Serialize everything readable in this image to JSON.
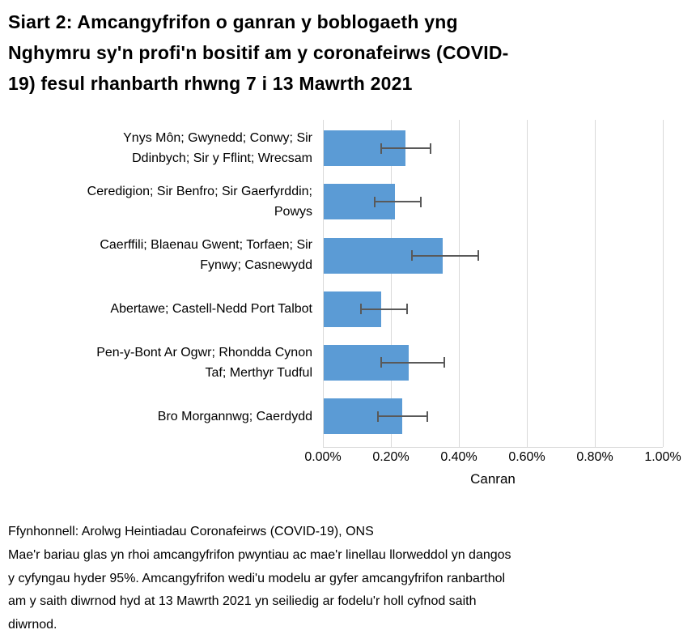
{
  "title_lines": [
    "Siart 2: Amcangyfrifon o ganran y boblogaeth yng",
    "Nghymru sy'n profi'n bositif am y coronafeirws (COVID-",
    "19) fesul rhanbarth rhwng 7 i 13 Mawrth 2021"
  ],
  "chart_data": {
    "type": "bar",
    "orientation": "horizontal",
    "title": "Siart 2: Amcangyfrifon o ganran y boblogaeth yng Nghymru sy'n profi'n bositif am y coronafeirws (COVID-19) fesul rhanbarth rhwng 7 i 13 Mawrth 2021",
    "categories": [
      "Ynys Môn; Gwynedd; Conwy; Sir Ddinbych; Sir y Fflint; Wrecsam",
      "Ceredigion; Sir Benfro; Sir Gaerfyrddin; Powys",
      "Caerffili; Blaenau Gwent; Torfaen; Sir Fynwy; Casnewydd",
      "Abertawe; Castell-Nedd Port Talbot",
      "Pen-y-Bont Ar Ogwr; Rhondda Cynon Taf; Merthyr Tudful",
      "Bro Morgannwg; Caerdydd"
    ],
    "category_label_lines": [
      [
        "Ynys Môn; Gwynedd; Conwy; Sir",
        "Ddinbych; Sir y Fflint; Wrecsam"
      ],
      [
        "Ceredigion; Sir Benfro; Sir Gaerfyrddin;",
        "Powys"
      ],
      [
        "Caerffili; Blaenau Gwent; Torfaen; Sir",
        "Fynwy; Casnewydd"
      ],
      [
        "Abertawe; Castell-Nedd Port Talbot"
      ],
      [
        "Pen-y-Bont Ar Ogwr; Rhondda Cynon",
        "Taf; Merthyr Tudful"
      ],
      [
        "Bro Morgannwg; Caerdydd"
      ]
    ],
    "values": [
      0.24,
      0.21,
      0.35,
      0.17,
      0.25,
      0.23
    ],
    "ci_low": [
      0.17,
      0.15,
      0.26,
      0.11,
      0.17,
      0.16
    ],
    "ci_high": [
      0.32,
      0.29,
      0.46,
      0.25,
      0.36,
      0.31
    ],
    "x_ticks": [
      "0.00%",
      "0.20%",
      "0.40%",
      "0.60%",
      "0.80%",
      "1.00%"
    ],
    "xlim": [
      0,
      1.0
    ],
    "xlabel": "Canran",
    "grid": "vertical",
    "legend": "none",
    "bar_color": "#5B9BD5",
    "error_color": "#595959",
    "gridline_color": "#D9D9D9"
  },
  "footer": {
    "source": "Ffynhonnell: Arolwg Heintiadau Coronafeirws (COVID-19), ONS",
    "note": "Mae'r bariau glas yn rhoi amcangyfrifon pwyntiau ac mae'r linellau llorweddol yn dangos y cyfyngau hyder 95%. Amcangyfrifon wedi'u modelu ar gyfer amcangyfrifon ranbarthol am y saith diwrnod hyd at 13 Mawrth 2021 yn seiliedig ar fodelu'r holl cyfnod saith diwrnod.",
    "note_lines": [
      "Mae'r bariau glas yn rhoi amcangyfrifon pwyntiau ac mae'r linellau llorweddol yn dangos",
      "y cyfyngau hyder 95%. Amcangyfrifon wedi'u modelu ar gyfer amcangyfrifon ranbarthol",
      "am y saith diwrnod hyd at 13 Mawrth 2021 yn seiliedig ar fodelu'r holl cyfnod saith",
      "diwrnod."
    ]
  }
}
